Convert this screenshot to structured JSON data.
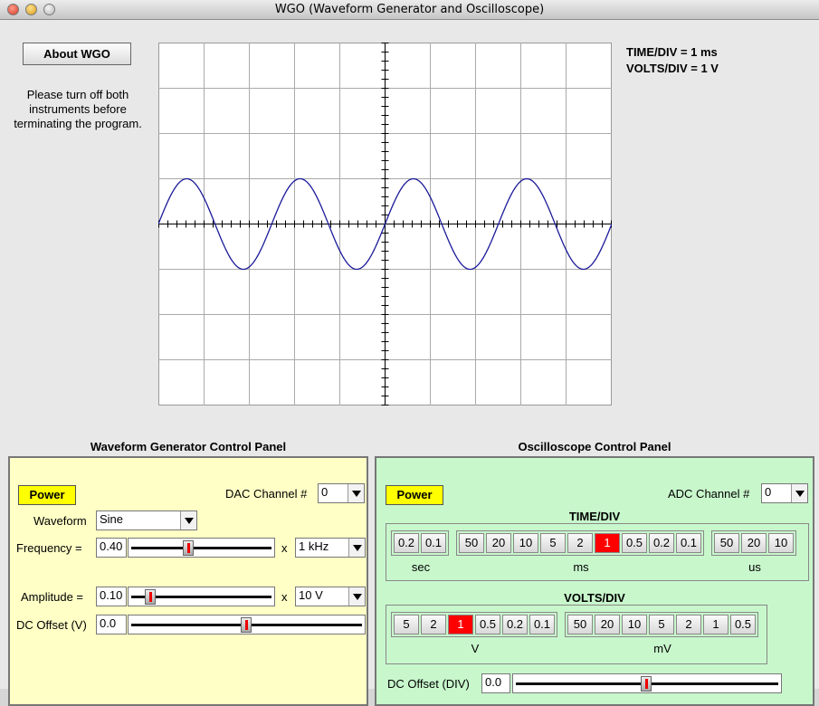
{
  "window": {
    "title": "WGO (Waveform Generator and Oscilloscope)"
  },
  "top": {
    "about_button": "About WGO",
    "notice_lines": [
      "Please turn off both",
      "instruments before",
      "terminating the program."
    ],
    "time_div_label": "TIME/DIV = 1 ms",
    "volts_div_label": "VOLTS/DIV = 1 V"
  },
  "waveform_generator": {
    "title": "Waveform Generator Control Panel",
    "power": "Power",
    "dac_label": "DAC Channel #",
    "dac_value": "0",
    "waveform_label": "Waveform",
    "waveform_value": "Sine",
    "frequency_label": "Frequency =",
    "frequency_value": "0.40",
    "frequency_level": 0.4,
    "frequency_x": "x",
    "frequency_unit": "1 kHz",
    "amplitude_label": "Amplitude =",
    "amplitude_value": "0.10",
    "amplitude_level": 0.1,
    "amplitude_x": "x",
    "amplitude_unit": "10 V",
    "dc_offset_label": "DC Offset (V)",
    "dc_offset_value": "0.0",
    "dc_offset_level": 0.5
  },
  "oscilloscope": {
    "title": "Oscilloscope Control Panel",
    "power": "Power",
    "adc_label": "ADC Channel #",
    "adc_value": "0",
    "time_div_title": "TIME/DIV",
    "time_groups": [
      {
        "unit": "sec",
        "buttons": [
          "0.2",
          "0.1"
        ]
      },
      {
        "unit": "ms",
        "buttons": [
          "50",
          "20",
          "10",
          "5",
          "2",
          "1",
          "0.5",
          "0.2",
          "0.1"
        ]
      },
      {
        "unit": "us",
        "buttons": [
          "50",
          "20",
          "10"
        ]
      }
    ],
    "time_selected": "ms:1",
    "volts_div_title": "VOLTS/DIV",
    "volt_groups": [
      {
        "unit": "V",
        "buttons": [
          "5",
          "2",
          "1",
          "0.5",
          "0.2",
          "0.1"
        ]
      },
      {
        "unit": "mV",
        "buttons": [
          "50",
          "20",
          "10",
          "5",
          "2",
          "1",
          "0.5"
        ]
      }
    ],
    "volt_selected": "V:1",
    "dc_offset_label": "DC Offset (DIV)",
    "dc_offset_value": "0.0",
    "dc_offset_level": 0.5
  },
  "scope_display": {
    "signal": "sine",
    "divisions_x": 10,
    "divisions_y": 8,
    "cycles_shown": 4,
    "amplitude_div": 1,
    "trace_color": "#1a1a9a"
  },
  "colors": {
    "wg_panel": "#ffffc6",
    "osc_panel": "#c8f7cc",
    "power": "#ffff00",
    "active_button": "#ff0000"
  }
}
